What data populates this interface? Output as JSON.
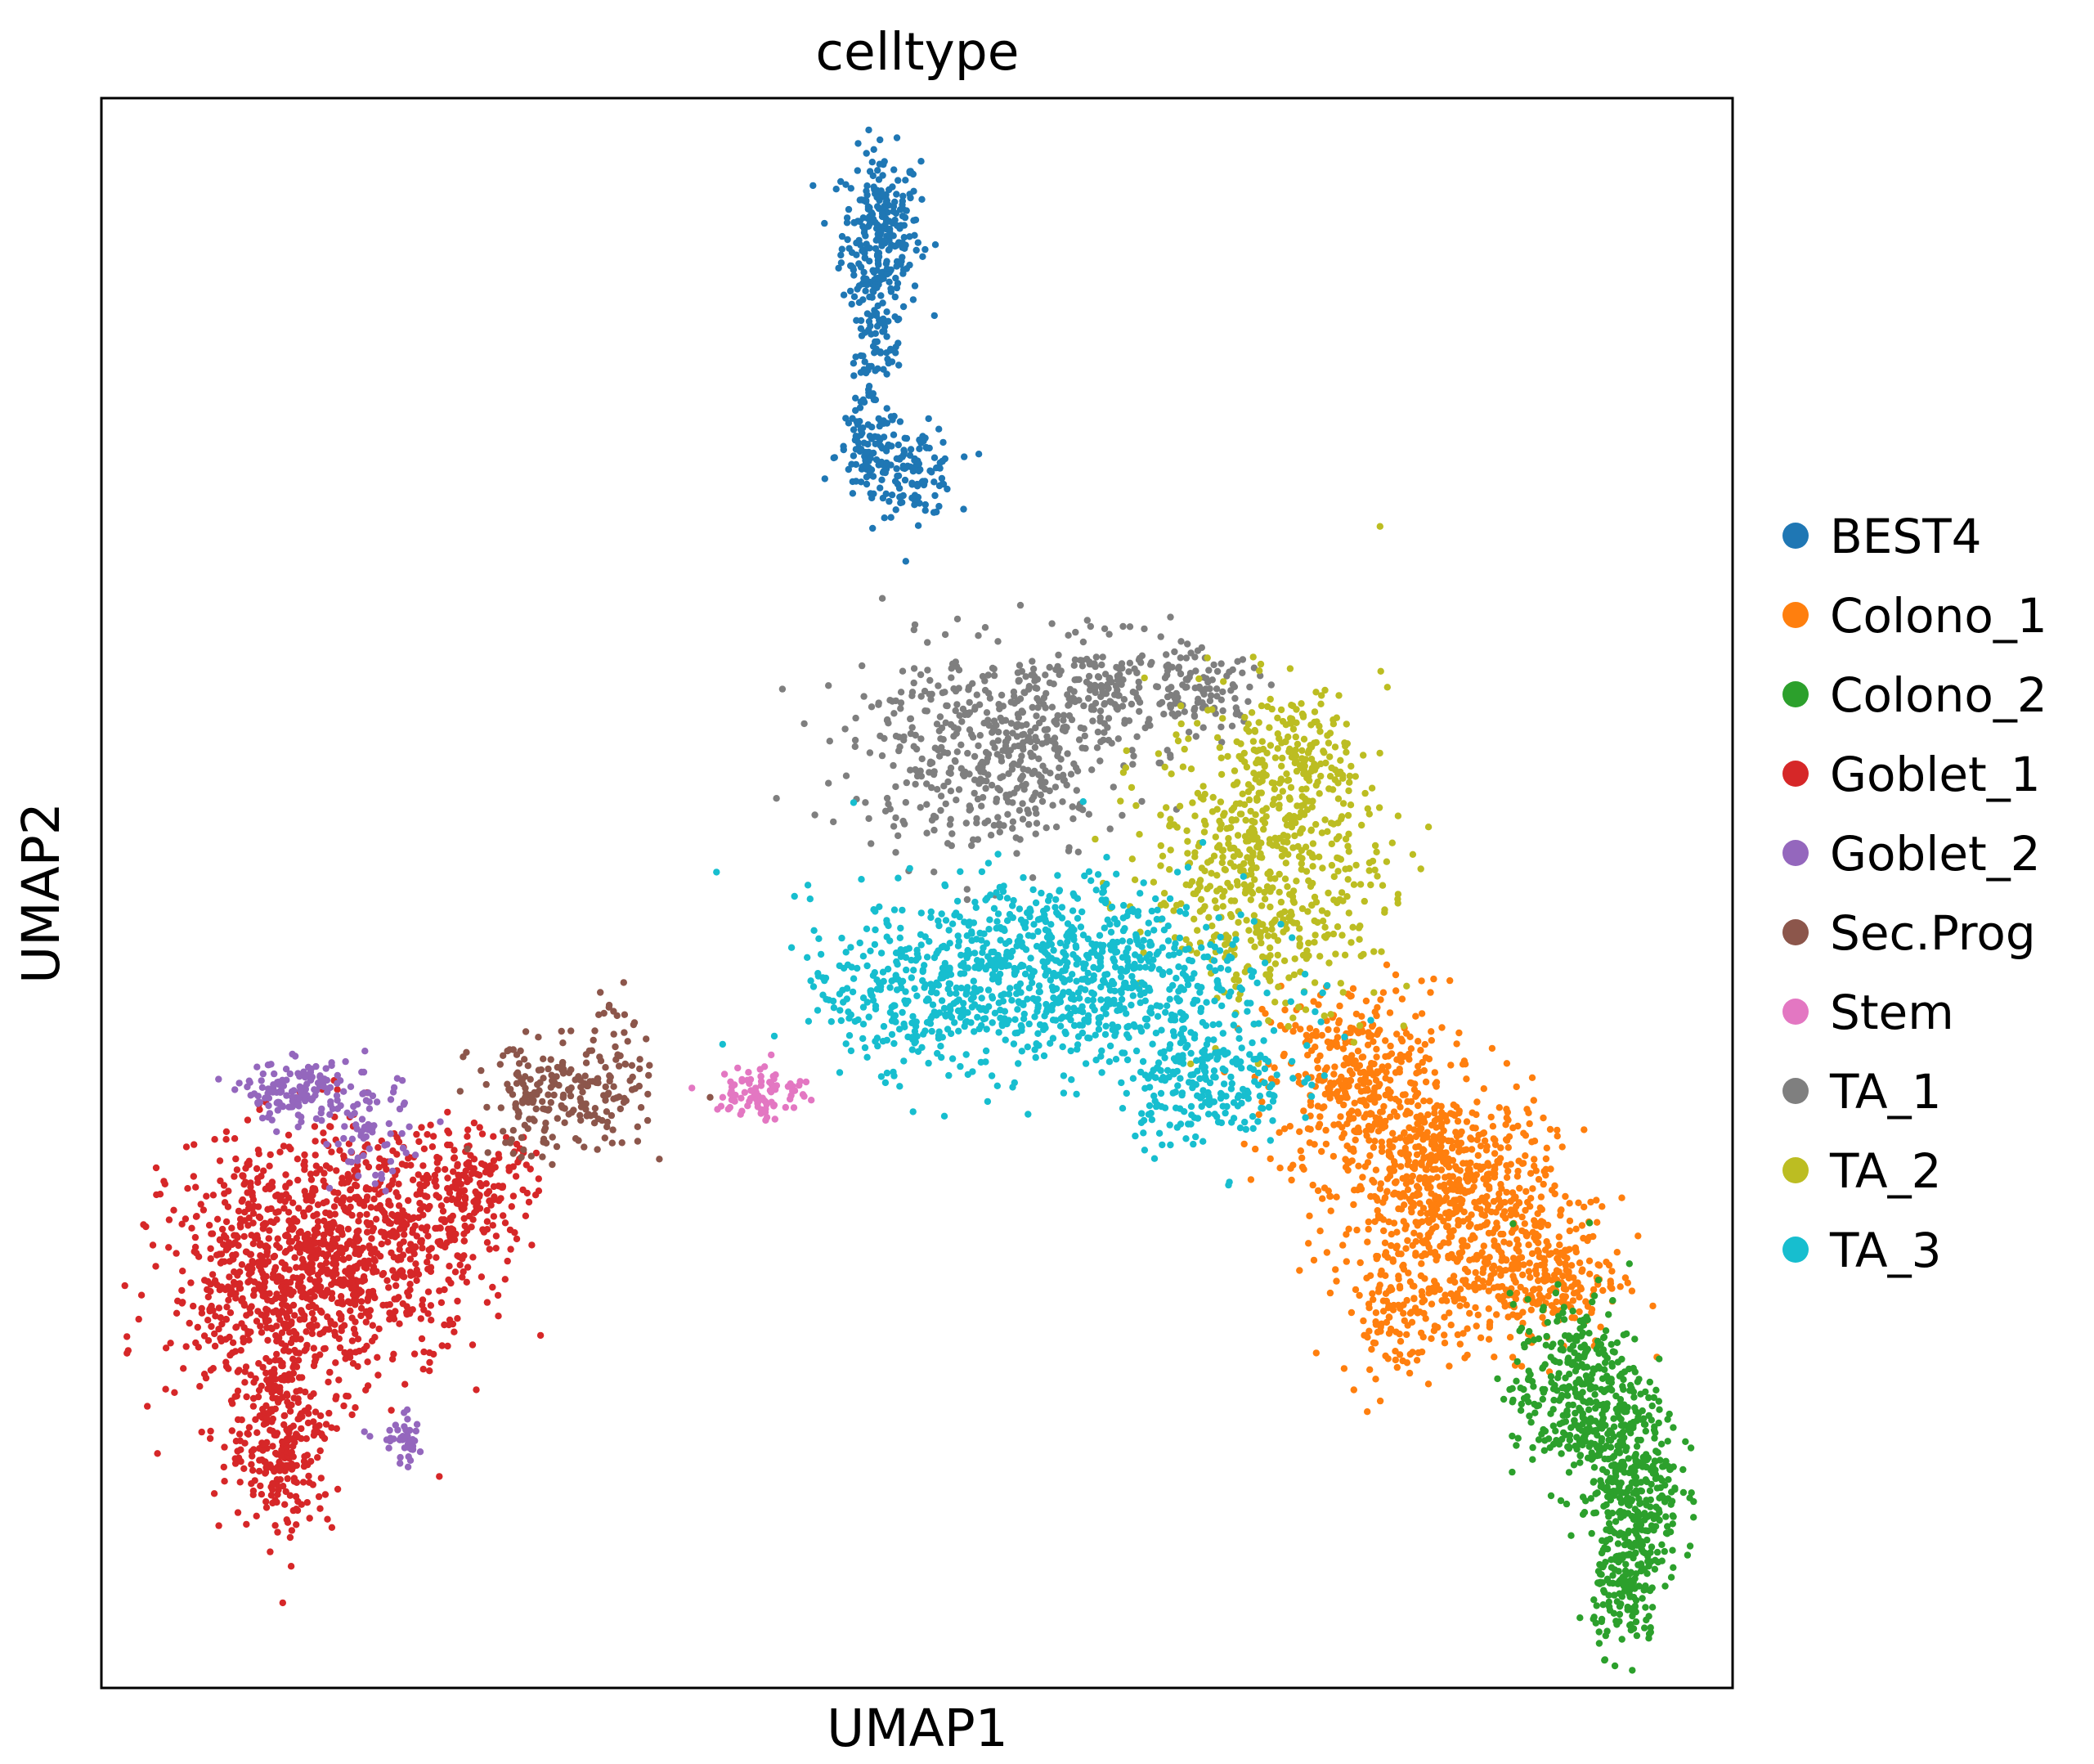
{
  "chart_data": {
    "type": "scatter",
    "title": "celltype",
    "xlabel": "UMAP1",
    "ylabel": "UMAP2",
    "xlim": [
      0,
      100
    ],
    "ylim": [
      0,
      100
    ],
    "grid": false,
    "ticks": false,
    "legend_placement": "right",
    "series": [
      {
        "name": "BEST4",
        "color": "#1f77b4",
        "clusters": [
          {
            "cx": 47.8,
            "cy": 91.5,
            "sx": 1.2,
            "sy": 2.6,
            "n": 260
          },
          {
            "cx": 47.4,
            "cy": 84.0,
            "sx": 0.8,
            "sy": 2.4,
            "n": 90
          },
          {
            "cx": 47.0,
            "cy": 77.5,
            "sx": 1.0,
            "sy": 1.6,
            "n": 90
          },
          {
            "cx": 50.0,
            "cy": 76.5,
            "sx": 1.2,
            "sy": 1.4,
            "n": 110
          }
        ]
      },
      {
        "name": "Colono_1",
        "color": "#ff7f0e",
        "clusters": [
          {
            "cx": 77.0,
            "cy": 38.0,
            "sx": 2.8,
            "sy": 3.2,
            "n": 400
          },
          {
            "cx": 82.5,
            "cy": 31.5,
            "sx": 3.2,
            "sy": 3.0,
            "n": 600
          },
          {
            "cx": 88.0,
            "cy": 26.0,
            "sx": 2.6,
            "sy": 2.4,
            "n": 320
          },
          {
            "cx": 79.5,
            "cy": 24.0,
            "sx": 1.8,
            "sy": 2.2,
            "n": 140
          }
        ]
      },
      {
        "name": "Colono_2",
        "color": "#2ca02c",
        "clusters": [
          {
            "cx": 90.5,
            "cy": 18.5,
            "sx": 2.0,
            "sy": 3.0,
            "n": 380
          },
          {
            "cx": 94.0,
            "cy": 12.5,
            "sx": 1.4,
            "sy": 3.0,
            "n": 340
          },
          {
            "cx": 93.5,
            "cy": 6.0,
            "sx": 1.0,
            "sy": 1.8,
            "n": 140
          }
        ]
      },
      {
        "name": "Goblet_1",
        "color": "#d62728",
        "clusters": [
          {
            "cx": 11.5,
            "cy": 26.0,
            "sx": 3.6,
            "sy": 4.2,
            "n": 900
          },
          {
            "cx": 18.0,
            "cy": 28.5,
            "sx": 3.0,
            "sy": 3.2,
            "n": 380
          },
          {
            "cx": 23.0,
            "cy": 31.5,
            "sx": 1.8,
            "sy": 1.8,
            "n": 150
          },
          {
            "cx": 11.0,
            "cy": 15.5,
            "sx": 1.6,
            "sy": 3.0,
            "n": 260
          }
        ]
      },
      {
        "name": "Goblet_2",
        "color": "#9467bd",
        "clusters": [
          {
            "cx": 12.0,
            "cy": 37.5,
            "sx": 1.6,
            "sy": 0.9,
            "n": 140
          },
          {
            "cx": 16.5,
            "cy": 35.0,
            "sx": 1.2,
            "sy": 1.8,
            "n": 70
          },
          {
            "cx": 18.5,
            "cy": 15.5,
            "sx": 0.8,
            "sy": 0.8,
            "n": 40
          }
        ]
      },
      {
        "name": "Sec.Prog",
        "color": "#8c564b",
        "clusters": [
          {
            "cx": 28.0,
            "cy": 37.0,
            "sx": 2.6,
            "sy": 1.8,
            "n": 200
          },
          {
            "cx": 31.8,
            "cy": 40.0,
            "sx": 0.8,
            "sy": 2.6,
            "n": 40
          }
        ]
      },
      {
        "name": "Stem",
        "color": "#e377c2",
        "clusters": [
          {
            "cx": 40.5,
            "cy": 37.5,
            "sx": 1.4,
            "sy": 0.9,
            "n": 90
          }
        ]
      },
      {
        "name": "TA_1",
        "color": "#7f7f7f",
        "clusters": [
          {
            "cx": 54.5,
            "cy": 59.0,
            "sx": 4.2,
            "sy": 3.2,
            "n": 500
          },
          {
            "cx": 62.0,
            "cy": 63.0,
            "sx": 2.4,
            "sy": 1.6,
            "n": 160
          },
          {
            "cx": 67.0,
            "cy": 62.5,
            "sx": 2.0,
            "sy": 1.3,
            "n": 90
          }
        ]
      },
      {
        "name": "TA_2",
        "color": "#bcbd22",
        "clusters": [
          {
            "cx": 71.5,
            "cy": 52.5,
            "sx": 3.6,
            "sy": 4.8,
            "n": 650
          },
          {
            "cx": 73.5,
            "cy": 58.5,
            "sx": 1.8,
            "sy": 1.8,
            "n": 90
          }
        ]
      },
      {
        "name": "TA_3",
        "color": "#17becf",
        "clusters": [
          {
            "cx": 58.0,
            "cy": 45.0,
            "sx": 6.0,
            "sy": 3.0,
            "n": 900
          },
          {
            "cx": 49.5,
            "cy": 43.0,
            "sx": 2.8,
            "sy": 2.2,
            "n": 150
          },
          {
            "cx": 67.5,
            "cy": 38.5,
            "sx": 2.6,
            "sy": 2.2,
            "n": 250
          }
        ]
      }
    ]
  }
}
